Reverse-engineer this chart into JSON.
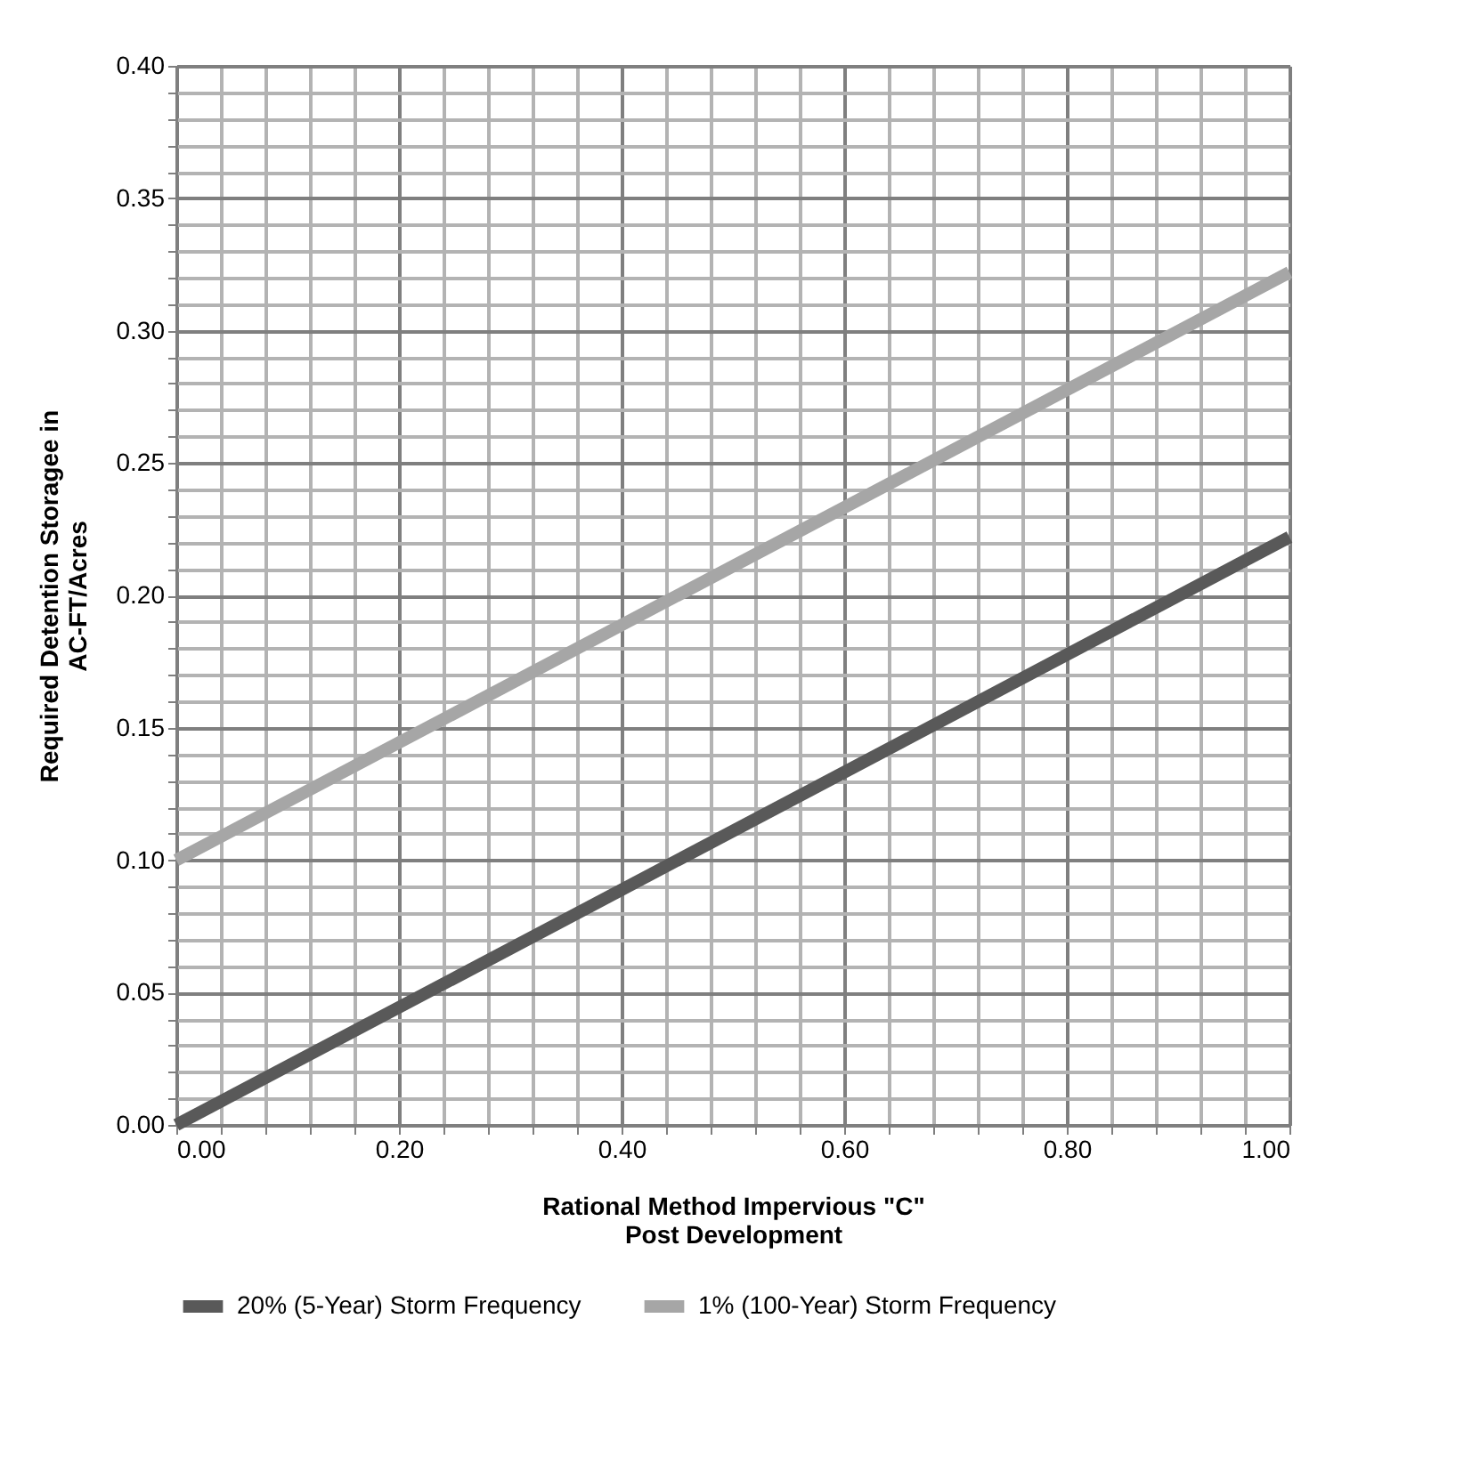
{
  "chart_data": {
    "type": "line",
    "xlabel": "Rational Method Impervious \"C\"\nPost Development",
    "ylabel": "Required Detention Storagee in\nAC-FT/Acres",
    "x": [
      0,
      1
    ],
    "series": [
      {
        "name": "20% (5-Year) Storm Frequency",
        "color": "#595959",
        "values": [
          0,
          0.222
        ]
      },
      {
        "name": "1% (100-Year) Storm Frequency",
        "color": "#a6a6a6",
        "values": [
          0.1,
          0.322
        ]
      }
    ],
    "xlim": [
      0,
      1
    ],
    "ylim": [
      0,
      0.4
    ],
    "xticks": [
      {
        "value": 0,
        "label": "0.00"
      },
      {
        "value": 0.04,
        "label": null
      },
      {
        "value": 0.08,
        "label": null
      },
      {
        "value": 0.12,
        "label": null
      },
      {
        "value": 0.16,
        "label": null
      },
      {
        "value": 0.2,
        "label": "0.20"
      },
      {
        "value": 0.24,
        "label": null
      },
      {
        "value": 0.28,
        "label": null
      },
      {
        "value": 0.32,
        "label": null
      },
      {
        "value": 0.36,
        "label": null
      },
      {
        "value": 0.4,
        "label": "0.40"
      },
      {
        "value": 0.44,
        "label": null
      },
      {
        "value": 0.48,
        "label": null
      },
      {
        "value": 0.52,
        "label": null
      },
      {
        "value": 0.56,
        "label": null
      },
      {
        "value": 0.6,
        "label": "0.60"
      },
      {
        "value": 0.64,
        "label": null
      },
      {
        "value": 0.68,
        "label": null
      },
      {
        "value": 0.72,
        "label": null
      },
      {
        "value": 0.76,
        "label": null
      },
      {
        "value": 0.8,
        "label": "0.80"
      },
      {
        "value": 0.84,
        "label": null
      },
      {
        "value": 0.88,
        "label": null
      },
      {
        "value": 0.92,
        "label": null
      },
      {
        "value": 0.96,
        "label": null
      },
      {
        "value": 1,
        "label": "1.00"
      }
    ],
    "yticks": [
      {
        "value": 0,
        "label": "0.00"
      },
      {
        "value": 0.01,
        "label": null
      },
      {
        "value": 0.02,
        "label": null
      },
      {
        "value": 0.03,
        "label": null
      },
      {
        "value": 0.04,
        "label": null
      },
      {
        "value": 0.05,
        "label": "0.05"
      },
      {
        "value": 0.06,
        "label": null
      },
      {
        "value": 0.07,
        "label": null
      },
      {
        "value": 0.08,
        "label": null
      },
      {
        "value": 0.09,
        "label": null
      },
      {
        "value": 0.1,
        "label": "0.10"
      },
      {
        "value": 0.11,
        "label": null
      },
      {
        "value": 0.12,
        "label": null
      },
      {
        "value": 0.13,
        "label": null
      },
      {
        "value": 0.14,
        "label": null
      },
      {
        "value": 0.15,
        "label": "0.15"
      },
      {
        "value": 0.16,
        "label": null
      },
      {
        "value": 0.17,
        "label": null
      },
      {
        "value": 0.18,
        "label": null
      },
      {
        "value": 0.19,
        "label": null
      },
      {
        "value": 0.2,
        "label": "0.20"
      },
      {
        "value": 0.21,
        "label": null
      },
      {
        "value": 0.22,
        "label": null
      },
      {
        "value": 0.23,
        "label": null
      },
      {
        "value": 0.24,
        "label": null
      },
      {
        "value": 0.25,
        "label": "0.25"
      },
      {
        "value": 0.26,
        "label": null
      },
      {
        "value": 0.27,
        "label": null
      },
      {
        "value": 0.28,
        "label": null
      },
      {
        "value": 0.29,
        "label": null
      },
      {
        "value": 0.3,
        "label": "0.30"
      },
      {
        "value": 0.31,
        "label": null
      },
      {
        "value": 0.32,
        "label": null
      },
      {
        "value": 0.33,
        "label": null
      },
      {
        "value": 0.34,
        "label": null
      },
      {
        "value": 0.35,
        "label": "0.35"
      },
      {
        "value": 0.36,
        "label": null
      },
      {
        "value": 0.37,
        "label": null
      },
      {
        "value": 0.38,
        "label": null
      },
      {
        "value": 0.39,
        "label": null
      },
      {
        "value": 0.4,
        "label": "0.40"
      }
    ],
    "grid": true,
    "legend": "bottom",
    "marker": "none",
    "line_style": "solid"
  }
}
